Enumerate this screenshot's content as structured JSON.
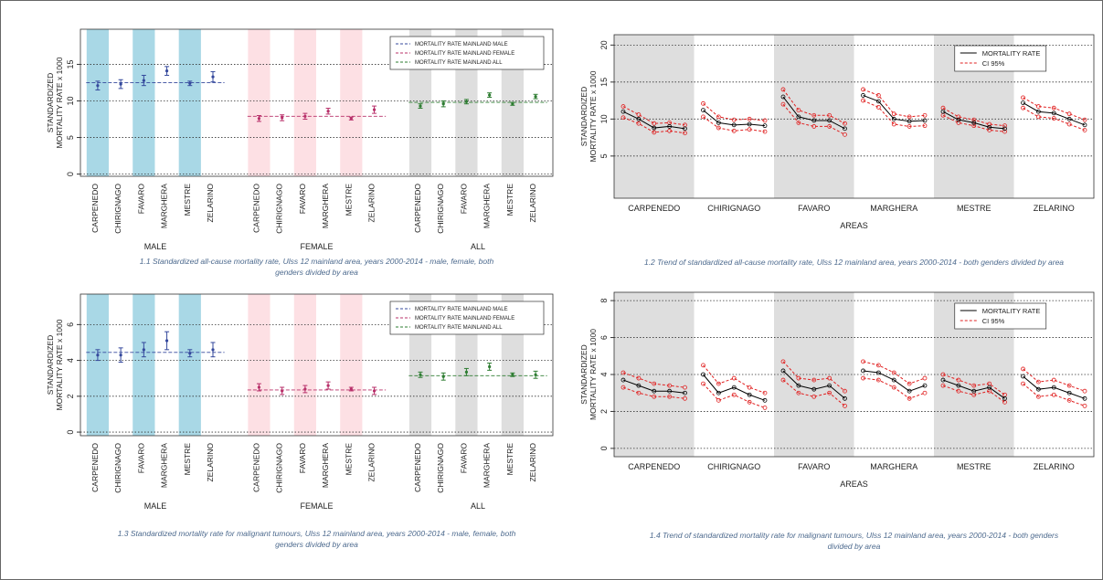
{
  "chart_data": [
    {
      "type": "errorbar",
      "caption": "1.1 Standardized all-cause mortality rate, Ulss 12 mainland area, years 2000-2014 - male, female, both genders divided by area",
      "ylabel": [
        "STANDARDIZED",
        "MORTALITY RATE x 1000"
      ],
      "categories": [
        "CARPENEDO",
        "CHIRIGNAGO",
        "FAVARO",
        "MARGHERA",
        "MESTRE",
        "ZELARINO"
      ],
      "ylim": [
        -0.3,
        19.8
      ],
      "yticks": [
        0,
        5,
        10,
        15
      ],
      "grid": true,
      "legend": "upper right",
      "groups": [
        {
          "name": "MALE",
          "color": "#34489c",
          "band_color": "#a9d8e6",
          "reference": 12.5,
          "reference_label": "MORTALITY RATE MAINLAND MALE",
          "values": [
            12.1,
            12.3,
            12.8,
            14.1,
            12.4,
            13.3
          ],
          "lower": [
            11.5,
            11.7,
            12.1,
            13.5,
            12.1,
            12.6
          ],
          "upper": [
            12.7,
            12.9,
            13.5,
            14.7,
            12.7,
            14.0
          ]
        },
        {
          "name": "FEMALE",
          "color": "#b8306a",
          "band_color": "#fde0e4",
          "reference": 7.9,
          "reference_label": "MORTALITY RATE MAINLAND FEMALE",
          "values": [
            7.6,
            7.7,
            7.9,
            8.6,
            7.6,
            8.8
          ],
          "lower": [
            7.2,
            7.3,
            7.5,
            8.2,
            7.4,
            8.3
          ],
          "upper": [
            8.0,
            8.1,
            8.3,
            9.0,
            7.8,
            9.3
          ]
        },
        {
          "name": "ALL",
          "color": "#2e7d32",
          "band_color": "#dedede",
          "reference": 9.8,
          "reference_label": "MORTALITY RATE MAINLAND ALL",
          "values": [
            9.3,
            9.6,
            9.9,
            10.8,
            9.6,
            10.6
          ],
          "lower": [
            9.0,
            9.2,
            9.6,
            10.5,
            9.4,
            10.3
          ],
          "upper": [
            9.6,
            10.0,
            10.2,
            11.1,
            9.8,
            10.9
          ]
        }
      ]
    },
    {
      "type": "trend",
      "caption": "1.2 Trend of standardized all-cause mortality rate, Ulss 12 mainland area, years 2000-2014 - both genders divided by area",
      "ylabel": [
        "STANDARDIZED",
        "MORTALITY RATE x 1000"
      ],
      "xlabel": "AREAS",
      "categories": [
        "CARPENEDO",
        "CHIRIGNAGO",
        "FAVARO",
        "MARGHERA",
        "MESTRE",
        "ZELARINO"
      ],
      "ylim": [
        -0.7,
        21.4
      ],
      "yticks": [
        5,
        10,
        15,
        20
      ],
      "grid": true,
      "legend": "upper right",
      "band_color": "#dedede",
      "series": [
        {
          "name": "MORTALITY RATE",
          "color": "#000000",
          "values": [
            [
              11.0,
              10.0,
              8.8,
              9.0,
              8.7
            ],
            [
              11.2,
              9.5,
              9.2,
              9.3,
              9.1
            ],
            [
              13.0,
              10.3,
              9.8,
              9.8,
              8.7
            ],
            [
              13.2,
              12.4,
              10.0,
              9.7,
              9.8
            ],
            [
              11.0,
              9.9,
              9.5,
              8.9,
              8.7
            ],
            [
              12.2,
              11.0,
              10.8,
              10.0,
              9.2
            ]
          ]
        },
        {
          "name": "CI 95%",
          "color": "#e02020",
          "lower": [
            [
              10.2,
              9.4,
              8.2,
              8.4,
              8.1
            ],
            [
              10.3,
              8.8,
              8.4,
              8.6,
              8.3
            ],
            [
              12.0,
              9.5,
              9.0,
              9.0,
              7.9
            ],
            [
              12.5,
              11.6,
              9.3,
              9.0,
              9.1
            ],
            [
              10.5,
              9.5,
              9.1,
              8.5,
              8.3
            ],
            [
              11.5,
              10.3,
              10.1,
              9.3,
              8.5
            ]
          ],
          "upper": [
            [
              11.7,
              10.6,
              9.4,
              9.5,
              9.2
            ],
            [
              12.1,
              10.3,
              9.9,
              10.0,
              9.8
            ],
            [
              14.0,
              11.2,
              10.5,
              10.5,
              9.4
            ],
            [
              14.0,
              13.2,
              10.7,
              10.3,
              10.5
            ],
            [
              11.5,
              10.3,
              9.9,
              9.3,
              9.1
            ],
            [
              12.9,
              11.7,
              11.5,
              10.7,
              9.9
            ]
          ]
        }
      ]
    },
    {
      "type": "errorbar",
      "caption": "1.3 Standardized mortality rate for malignant tumours, Ulss 12 mainland area, years 2000-2014 - male, female, both genders divided by area",
      "ylabel": [
        "STANDARDIZED",
        "MORTALITY RATE x 1000"
      ],
      "categories": [
        "CARPENEDO",
        "CHIRIGNAGO",
        "FAVARO",
        "MARGHERA",
        "MESTRE",
        "ZELARINO"
      ],
      "ylim": [
        -0.2,
        7.7
      ],
      "yticks": [
        0,
        2,
        4,
        6
      ],
      "grid": true,
      "legend": "upper right",
      "groups": [
        {
          "name": "MALE",
          "color": "#34489c",
          "band_color": "#a9d8e6",
          "reference": 4.45,
          "reference_label": "MORTALITY RATE MAINLAND MALE",
          "values": [
            4.3,
            4.3,
            4.6,
            5.1,
            4.4,
            4.6
          ],
          "lower": [
            4.0,
            3.9,
            4.2,
            4.6,
            4.2,
            4.2
          ],
          "upper": [
            4.6,
            4.7,
            5.0,
            5.6,
            4.6,
            5.0
          ]
        },
        {
          "name": "FEMALE",
          "color": "#b8306a",
          "band_color": "#fde0e4",
          "reference": 2.35,
          "reference_label": "MORTALITY RATE MAINLAND FEMALE",
          "values": [
            2.5,
            2.3,
            2.4,
            2.6,
            2.4,
            2.3
          ],
          "lower": [
            2.3,
            2.1,
            2.2,
            2.4,
            2.3,
            2.1
          ],
          "upper": [
            2.7,
            2.5,
            2.6,
            2.8,
            2.5,
            2.5
          ]
        },
        {
          "name": "ALL",
          "color": "#2e7d32",
          "band_color": "#dedede",
          "reference": 3.15,
          "reference_label": "MORTALITY RATE MAINLAND ALL",
          "values": [
            3.2,
            3.1,
            3.35,
            3.65,
            3.2,
            3.2
          ],
          "lower": [
            3.05,
            2.9,
            3.15,
            3.45,
            3.1,
            3.0
          ],
          "upper": [
            3.35,
            3.3,
            3.55,
            3.85,
            3.3,
            3.4
          ]
        }
      ]
    },
    {
      "type": "trend",
      "caption": "1.4 Trend of standardized mortality rate for malignant tumours, Ulss 12 mainland area, years 2000-2014 - both genders divided by area",
      "ylabel": [
        "STANDARDIZED",
        "MORTALITY RATE x 1000"
      ],
      "xlabel": "AREAS",
      "categories": [
        "CARPENEDO",
        "CHIRIGNAGO",
        "FAVARO",
        "MARGHERA",
        "MESTRE",
        "ZELARINO"
      ],
      "ylim": [
        -0.45,
        8.45
      ],
      "yticks": [
        0,
        2,
        4,
        6,
        8
      ],
      "grid": true,
      "legend": "upper right",
      "band_color": "#dedede",
      "series": [
        {
          "name": "MORTALITY RATE",
          "color": "#000000",
          "values": [
            [
              3.7,
              3.4,
              3.1,
              3.1,
              3.0
            ],
            [
              4.0,
              3.0,
              3.3,
              2.9,
              2.6
            ],
            [
              4.2,
              3.4,
              3.2,
              3.4,
              2.7
            ],
            [
              4.2,
              4.1,
              3.7,
              3.1,
              3.4
            ],
            [
              3.7,
              3.4,
              3.1,
              3.3,
              2.7
            ],
            [
              3.9,
              3.2,
              3.3,
              3.0,
              2.7
            ]
          ]
        },
        {
          "name": "CI 95%",
          "color": "#e02020",
          "lower": [
            [
              3.3,
              3.0,
              2.8,
              2.8,
              2.7
            ],
            [
              3.5,
              2.6,
              2.9,
              2.5,
              2.2
            ],
            [
              3.7,
              3.0,
              2.8,
              3.0,
              2.3
            ],
            [
              3.8,
              3.7,
              3.3,
              2.7,
              3.0
            ],
            [
              3.4,
              3.1,
              2.9,
              3.1,
              2.5
            ],
            [
              3.5,
              2.8,
              2.9,
              2.6,
              2.3
            ]
          ],
          "upper": [
            [
              4.1,
              3.8,
              3.5,
              3.4,
              3.3
            ],
            [
              4.5,
              3.5,
              3.8,
              3.3,
              3.0
            ],
            [
              4.7,
              3.8,
              3.7,
              3.8,
              3.1
            ],
            [
              4.7,
              4.5,
              4.1,
              3.5,
              3.8
            ],
            [
              4.0,
              3.7,
              3.4,
              3.5,
              2.9
            ],
            [
              4.3,
              3.6,
              3.7,
              3.4,
              3.1
            ]
          ]
        }
      ]
    }
  ]
}
